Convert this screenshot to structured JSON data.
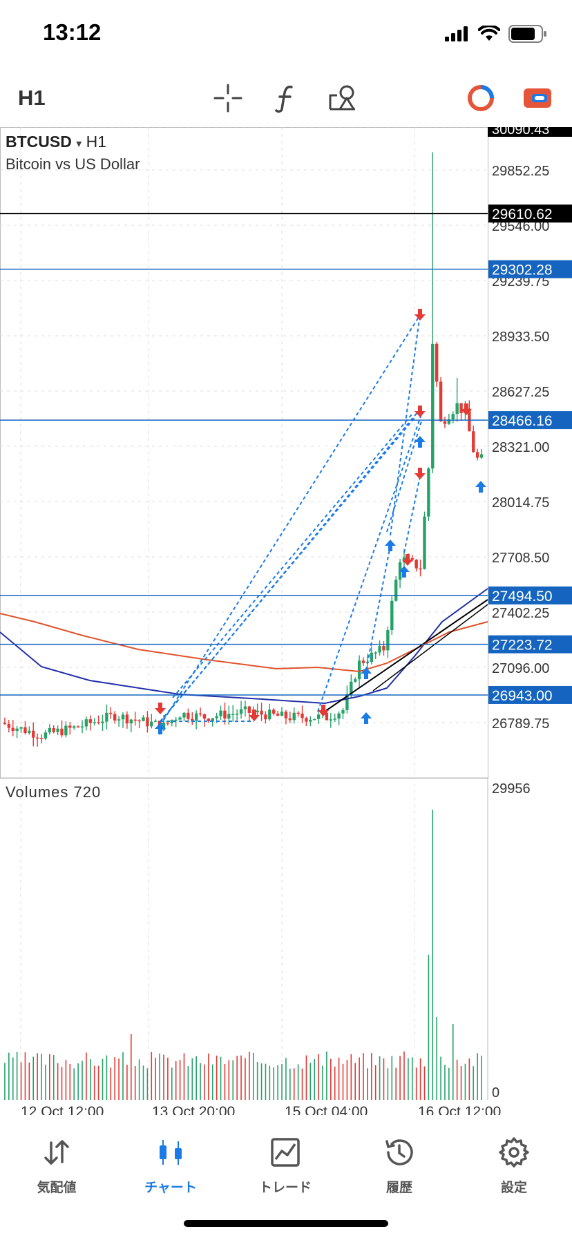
{
  "status": {
    "time": "13:12"
  },
  "toolbar": {
    "timeframe": "H1",
    "buttons": [
      "crosshair-icon",
      "indicators-icon",
      "objects-icon",
      "one-click-trading-icon",
      "trade-panel-icon"
    ]
  },
  "chart": {
    "symbol": "BTCUSD",
    "symbol_caret": "▾",
    "timeframe": "H1",
    "description": "Bitcoin vs US Dollar",
    "price_ticks": [
      "30090.43",
      "29852.25",
      "29546.00",
      "29239.75",
      "28933.50",
      "28627.25",
      "28321.00",
      "28014.75",
      "27708.50",
      "27402.25",
      "27096.00",
      "26789.75"
    ],
    "price_values": [
      30090.43,
      29852.25,
      29546.0,
      29239.75,
      28933.5,
      28627.25,
      28321.0,
      28014.75,
      27708.5,
      27402.25,
      27096.0,
      26789.75
    ],
    "hlines": [
      {
        "label": "29610.62",
        "value": 29610.62,
        "color": "#000000"
      },
      {
        "label": "29302.28",
        "value": 29302.28,
        "color": "#1565c0"
      },
      {
        "label": "28466.16",
        "value": 28466.16,
        "color": "#1565c0"
      },
      {
        "label": "27494.50",
        "value": 27494.5,
        "color": "#1565c0"
      },
      {
        "label": "27223.72",
        "value": 27223.72,
        "color": "#1565c0"
      },
      {
        "label": "26943.00",
        "value": 26943.0,
        "color": "#1565c0"
      }
    ],
    "volume_label": "Volumes 720",
    "volume_ticks": [
      "29956",
      "0"
    ],
    "time_labels": [
      "12 Oct 12:00",
      "13 Oct 20:00",
      "15 Oct 04:00",
      "16 Oct 12:00"
    ],
    "colors": {
      "up": "#26a269",
      "down": "#e53935",
      "ma_fast": "#1f2fa8",
      "ma_slow": "#e0522a",
      "buy_arrow": "#1a7be6",
      "sell_arrow": "#e53935"
    }
  },
  "tabs": [
    {
      "label": "気配値",
      "icon": "quotes-icon",
      "active": false
    },
    {
      "label": "チャート",
      "icon": "chart-icon",
      "active": true
    },
    {
      "label": "トレード",
      "icon": "trade-icon",
      "active": false
    },
    {
      "label": "履歴",
      "icon": "history-icon",
      "active": false
    },
    {
      "label": "設定",
      "icon": "settings-icon",
      "active": false
    }
  ]
}
